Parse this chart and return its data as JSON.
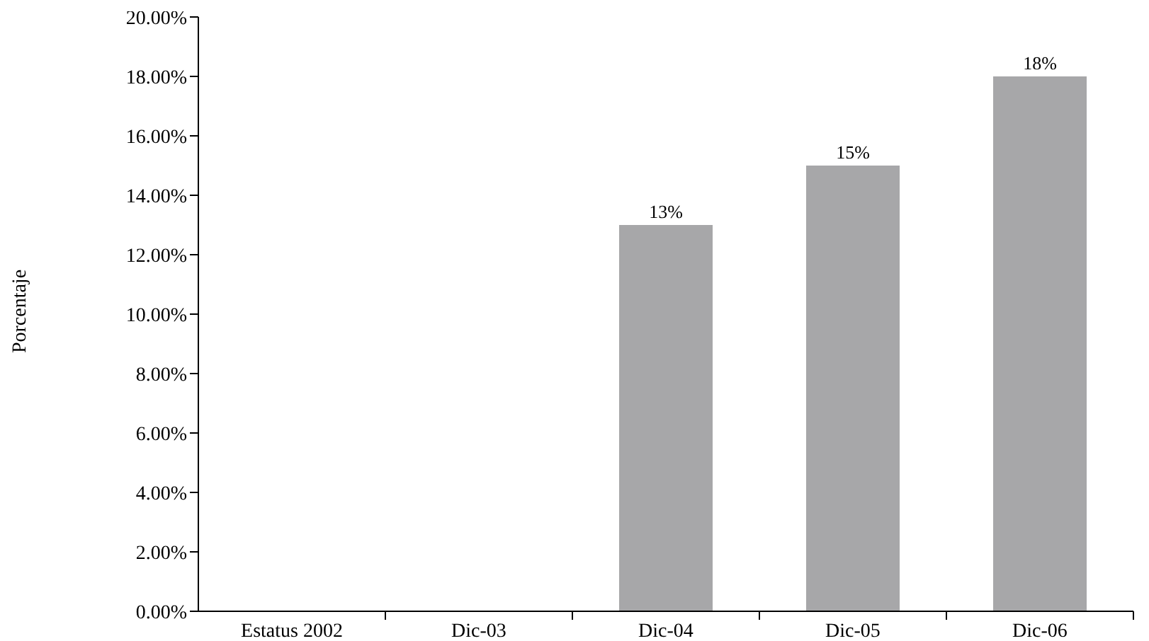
{
  "chart_data": {
    "type": "bar",
    "ylabel": "Porcentaje",
    "categories": [
      "Estatus 2002",
      "Dic-03",
      "Dic-04",
      "Dic-05",
      "Dic-06"
    ],
    "values": [
      null,
      null,
      13,
      15,
      18
    ],
    "value_labels": [
      null,
      null,
      "13%",
      "15%",
      "18%"
    ],
    "color": "#a7a7a9",
    "ylim": [
      0,
      20
    ],
    "yticks": [
      {
        "value": 0,
        "label": "0.00%"
      },
      {
        "value": 2,
        "label": "2.00%"
      },
      {
        "value": 4,
        "label": "4.00%"
      },
      {
        "value": 6,
        "label": "6.00%"
      },
      {
        "value": 8,
        "label": "8.00%"
      },
      {
        "value": 10,
        "label": "10.00%"
      },
      {
        "value": 12,
        "label": "12.00%"
      },
      {
        "value": 14,
        "label": "14.00%"
      },
      {
        "value": 16,
        "label": "16.00%"
      },
      {
        "value": 18,
        "label": "18.00%"
      },
      {
        "value": 20,
        "label": "20.00%"
      }
    ],
    "grid": false,
    "legend": false
  }
}
